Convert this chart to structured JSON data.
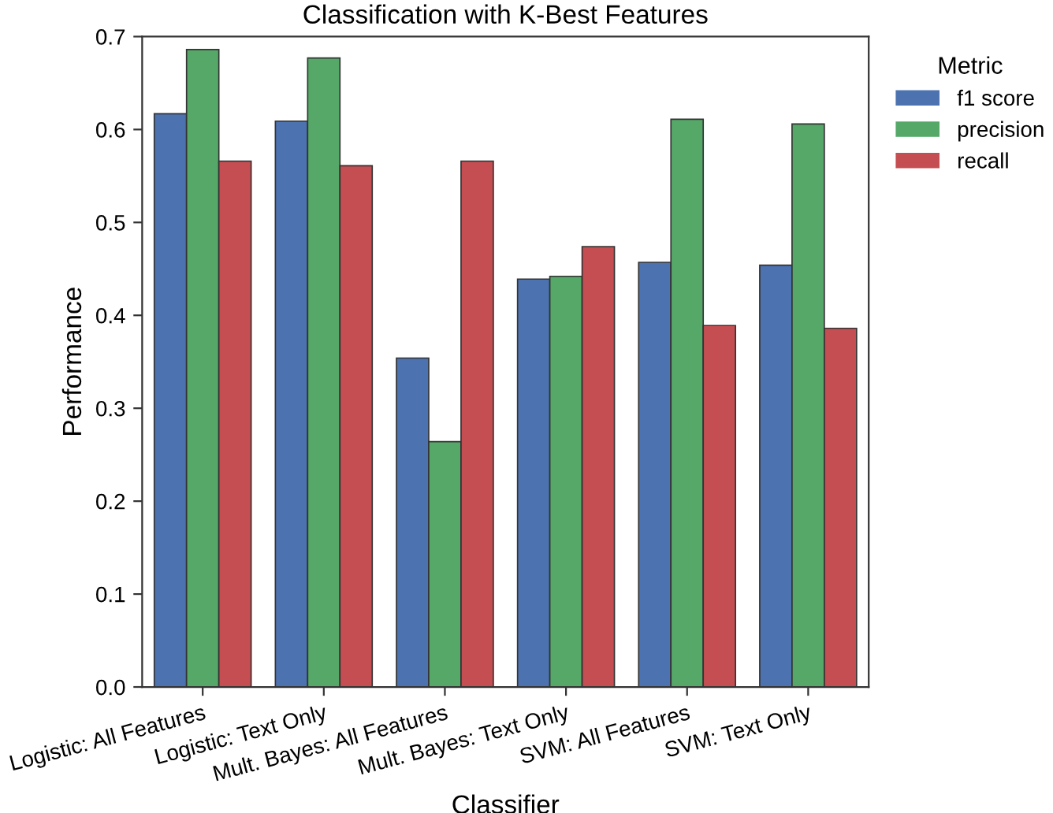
{
  "chart_data": {
    "type": "bar",
    "title": "Classification with K-Best Features",
    "xlabel": "Classifier",
    "ylabel": "Performance",
    "legend_title": "Metric",
    "categories": [
      "Logistic: All Features",
      "Logistic: Text Only",
      "Mult. Bayes: All Features",
      "Mult. Bayes: Text Only",
      "SVM: All Features",
      "SVM: Text Only"
    ],
    "series": [
      {
        "name": "f1 score",
        "color": "#4c72b0",
        "values": [
          0.617,
          0.609,
          0.354,
          0.439,
          0.457,
          0.454
        ]
      },
      {
        "name": "precision",
        "color": "#55a868",
        "values": [
          0.686,
          0.677,
          0.264,
          0.442,
          0.611,
          0.606
        ]
      },
      {
        "name": "recall",
        "color": "#c44e52",
        "values": [
          0.566,
          0.561,
          0.566,
          0.474,
          0.389,
          0.386
        ]
      }
    ],
    "ylim": [
      0.0,
      0.7
    ],
    "yticks": [
      {
        "value": 0.0,
        "label": "0.0"
      },
      {
        "value": 0.1,
        "label": "0.1"
      },
      {
        "value": 0.2,
        "label": "0.2"
      },
      {
        "value": 0.3,
        "label": "0.3"
      },
      {
        "value": 0.4,
        "label": "0.4"
      },
      {
        "value": 0.5,
        "label": "0.5"
      },
      {
        "value": 0.6,
        "label": "0.6"
      },
      {
        "value": 0.7,
        "label": "0.7"
      }
    ],
    "grid": false,
    "legend": "top right"
  }
}
